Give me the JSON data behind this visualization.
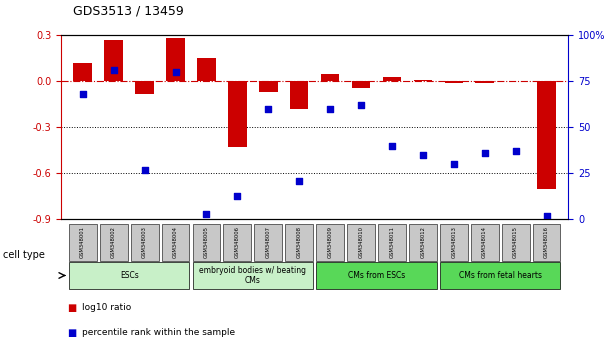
{
  "title": "GDS3513 / 13459",
  "samples": [
    "GSM348001",
    "GSM348002",
    "GSM348003",
    "GSM348004",
    "GSM348005",
    "GSM348006",
    "GSM348007",
    "GSM348008",
    "GSM348009",
    "GSM348010",
    "GSM348011",
    "GSM348012",
    "GSM348013",
    "GSM348014",
    "GSM348015",
    "GSM348016"
  ],
  "log10_ratio": [
    0.12,
    0.27,
    -0.08,
    0.28,
    0.15,
    -0.43,
    -0.07,
    -0.18,
    0.05,
    -0.04,
    0.03,
    0.01,
    -0.01,
    -0.01,
    0.0,
    -0.7
  ],
  "percentile_rank": [
    68,
    81,
    27,
    80,
    3,
    13,
    60,
    21,
    60,
    62,
    40,
    35,
    30,
    36,
    37,
    2
  ],
  "ylim_left": [
    -0.9,
    0.3
  ],
  "ylim_right": [
    0,
    100
  ],
  "yticks_left": [
    0.3,
    0.0,
    -0.3,
    -0.6,
    -0.9
  ],
  "yticks_right_vals": [
    100,
    75,
    50,
    25,
    0
  ],
  "yticks_right_labels": [
    "100%",
    "75",
    "50",
    "25",
    "0"
  ],
  "bar_color": "#CC0000",
  "dot_color": "#0000CC",
  "hline_color": "#CC0000",
  "grid_color": "black",
  "sample_box_color": "#C8C8C8",
  "cell_groups": [
    {
      "label": "ESCs",
      "start": 0,
      "end": 3,
      "color": "#C8F0C8"
    },
    {
      "label": "embryoid bodies w/ beating\nCMs",
      "start": 4,
      "end": 7,
      "color": "#C8F0C8"
    },
    {
      "label": "CMs from ESCs",
      "start": 8,
      "end": 11,
      "color": "#58D858"
    },
    {
      "label": "CMs from fetal hearts",
      "start": 12,
      "end": 15,
      "color": "#58D858"
    }
  ],
  "cell_type_label": "cell type",
  "legend_items": [
    {
      "label": "log10 ratio",
      "color": "#CC0000"
    },
    {
      "label": "percentile rank within the sample",
      "color": "#0000CC"
    }
  ]
}
